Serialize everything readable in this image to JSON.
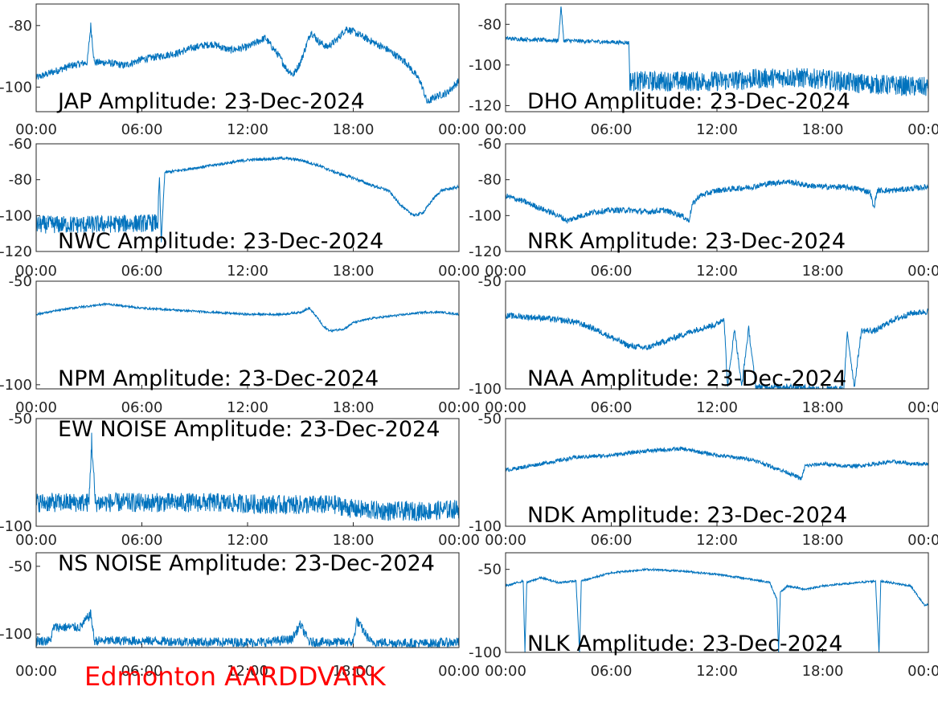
{
  "footer": {
    "text": "Edmonton AARDDVARK",
    "color": "#ff0000"
  },
  "series_color": "#0072bd",
  "x_tick_labels": [
    "00:00",
    "06:00",
    "12:00",
    "18:00",
    "00:00"
  ],
  "chart_data": [
    {
      "type": "line",
      "title": "JAP Amplitude: 23-Dec-2024",
      "x_range": [
        "00:00",
        "24:00"
      ],
      "ylim": [
        -108,
        -73
      ],
      "yticks": [
        -80,
        -100
      ],
      "ytick_labels": [
        "-80",
        "-100"
      ],
      "points": [
        [
          0,
          -97
        ],
        [
          1,
          -95
        ],
        [
          2,
          -93
        ],
        [
          2.9,
          -92
        ],
        [
          3.1,
          -80
        ],
        [
          3.3,
          -92
        ],
        [
          4,
          -92
        ],
        [
          5,
          -93
        ],
        [
          6,
          -91
        ],
        [
          7,
          -90
        ],
        [
          8,
          -89
        ],
        [
          9,
          -87
        ],
        [
          10,
          -86
        ],
        [
          11,
          -88
        ],
        [
          12,
          -87
        ],
        [
          13,
          -84
        ],
        [
          13.8,
          -90
        ],
        [
          14.2,
          -94
        ],
        [
          14.6,
          -96
        ],
        [
          15,
          -92
        ],
        [
          15.6,
          -82
        ],
        [
          16,
          -85
        ],
        [
          16.5,
          -87
        ],
        [
          17,
          -85
        ],
        [
          17.6,
          -81
        ],
        [
          18,
          -82
        ],
        [
          19,
          -85
        ],
        [
          20,
          -88
        ],
        [
          21,
          -92
        ],
        [
          21.8,
          -98
        ],
        [
          22.2,
          -105
        ],
        [
          22.7,
          -103
        ],
        [
          23.3,
          -102
        ],
        [
          24,
          -98
        ]
      ],
      "noise": 1.2
    },
    {
      "type": "line",
      "title": "DHO Amplitude: 23-Dec-2024",
      "x_range": [
        "00:00",
        "24:00"
      ],
      "ylim": [
        -123,
        -70
      ],
      "yticks": [
        -80,
        -100,
        -120
      ],
      "ytick_labels": [
        "-80",
        "-100",
        "-120"
      ],
      "points": [
        [
          0,
          -87
        ],
        [
          3,
          -88
        ],
        [
          3.15,
          -71
        ],
        [
          3.3,
          -88
        ],
        [
          7,
          -89
        ],
        [
          7.05,
          -108
        ],
        [
          12,
          -108
        ],
        [
          14,
          -107
        ],
        [
          16,
          -106
        ],
        [
          18,
          -107
        ],
        [
          20,
          -109
        ],
        [
          22,
          -110
        ],
        [
          24,
          -111
        ]
      ],
      "noise": 5,
      "noise_start": 7.05
    },
    {
      "type": "line",
      "title": "NWC Amplitude: 23-Dec-2024",
      "x_range": [
        "00:00",
        "24:00"
      ],
      "ylim": [
        -120,
        -60
      ],
      "yticks": [
        -60,
        -80,
        -100,
        -120
      ],
      "ytick_labels": [
        "-60",
        "-80",
        "-100",
        "-120"
      ],
      "points": [
        [
          0,
          -105
        ],
        [
          3,
          -105
        ],
        [
          6.9,
          -104
        ],
        [
          7,
          -80
        ],
        [
          7.1,
          -115
        ],
        [
          7.3,
          -76
        ],
        [
          8,
          -75
        ],
        [
          10,
          -72
        ],
        [
          12,
          -69
        ],
        [
          14,
          -68
        ],
        [
          15,
          -69
        ],
        [
          16,
          -72
        ],
        [
          17,
          -76
        ],
        [
          18,
          -79
        ],
        [
          19,
          -83
        ],
        [
          20,
          -86
        ],
        [
          20.5,
          -92
        ],
        [
          21,
          -97
        ],
        [
          21.5,
          -100
        ],
        [
          22,
          -98
        ],
        [
          22.5,
          -91
        ],
        [
          23,
          -86
        ],
        [
          24,
          -84
        ]
      ],
      "noise": 5,
      "noise_end": 7
    },
    {
      "type": "line",
      "title": "NRK Amplitude: 23-Dec-2024",
      "x_range": [
        "00:00",
        "24:00"
      ],
      "ylim": [
        -120,
        -60
      ],
      "yticks": [
        -60,
        -80,
        -100,
        -120
      ],
      "ytick_labels": [
        "-60",
        "-80",
        "-100",
        "-120"
      ],
      "points": [
        [
          0,
          -89
        ],
        [
          1,
          -92
        ],
        [
          2,
          -96
        ],
        [
          3,
          -100
        ],
        [
          3.5,
          -103
        ],
        [
          4,
          -101
        ],
        [
          5,
          -98
        ],
        [
          6,
          -97
        ],
        [
          7,
          -97
        ],
        [
          8,
          -98
        ],
        [
          9,
          -97
        ],
        [
          10,
          -100
        ],
        [
          10.4,
          -103
        ],
        [
          10.6,
          -94
        ],
        [
          11,
          -89
        ],
        [
          12,
          -86
        ],
        [
          13,
          -85
        ],
        [
          14,
          -84
        ],
        [
          15,
          -82
        ],
        [
          16,
          -81
        ],
        [
          17,
          -83
        ],
        [
          18,
          -84
        ],
        [
          19,
          -84
        ],
        [
          20,
          -85
        ],
        [
          20.7,
          -87
        ],
        [
          20.9,
          -96
        ],
        [
          21.1,
          -86
        ],
        [
          22,
          -86
        ],
        [
          23,
          -85
        ],
        [
          24,
          -84
        ]
      ],
      "noise": 1.6
    },
    {
      "type": "line",
      "title": "NPM Amplitude: 23-Dec-2024",
      "x_range": [
        "00:00",
        "24:00"
      ],
      "ylim": [
        -102,
        -50
      ],
      "yticks": [
        -50,
        -100
      ],
      "ytick_labels": [
        "-50",
        "-100"
      ],
      "points": [
        [
          0,
          -66
        ],
        [
          2,
          -63
        ],
        [
          4,
          -61
        ],
        [
          6,
          -63
        ],
        [
          8,
          -64
        ],
        [
          10,
          -65
        ],
        [
          12,
          -66
        ],
        [
          14,
          -66
        ],
        [
          15,
          -65
        ],
        [
          15.5,
          -63
        ],
        [
          16,
          -68
        ],
        [
          16.3,
          -72
        ],
        [
          16.7,
          -74
        ],
        [
          17.5,
          -73
        ],
        [
          18,
          -70
        ],
        [
          19,
          -68
        ],
        [
          20,
          -67
        ],
        [
          22,
          -65
        ],
        [
          23,
          -65
        ],
        [
          24,
          -66
        ]
      ],
      "noise": 0.5
    },
    {
      "type": "line",
      "title": "NAA Amplitude: 23-Dec-2024",
      "x_range": [
        "00:00",
        "24:00"
      ],
      "ylim": [
        -100,
        -50
      ],
      "yticks": [
        -50,
        -100
      ],
      "ytick_labels": [
        "-50",
        "-100"
      ],
      "points": [
        [
          0,
          -66
        ],
        [
          2,
          -67
        ],
        [
          4,
          -69
        ],
        [
          5,
          -72
        ],
        [
          6,
          -76
        ],
        [
          7,
          -80
        ],
        [
          8,
          -81
        ],
        [
          9,
          -78
        ],
        [
          10,
          -75
        ],
        [
          11,
          -72
        ],
        [
          12,
          -70
        ],
        [
          12.4,
          -67
        ],
        [
          12.6,
          -99
        ],
        [
          13,
          -72
        ],
        [
          13.4,
          -99
        ],
        [
          13.8,
          -72
        ],
        [
          14.2,
          -99
        ],
        [
          15,
          -99
        ],
        [
          16,
          -99
        ],
        [
          18,
          -100
        ],
        [
          19.2,
          -100
        ],
        [
          19.4,
          -74
        ],
        [
          19.8,
          -99
        ],
        [
          20.2,
          -73
        ],
        [
          21,
          -73
        ],
        [
          22,
          -68
        ],
        [
          23,
          -65
        ],
        [
          24,
          -64
        ]
      ],
      "noise": 1.4
    },
    {
      "type": "line",
      "title": "EW NOISE Amplitude: 23-Dec-2024",
      "x_range": [
        "00:00",
        "24:00"
      ],
      "ylim": [
        -100,
        -50
      ],
      "yticks": [
        -50,
        -100
      ],
      "ytick_labels": [
        "-50",
        "-100"
      ],
      "points": [
        [
          0,
          -89
        ],
        [
          2,
          -89
        ],
        [
          3,
          -89
        ],
        [
          3.15,
          -60
        ],
        [
          3.35,
          -89
        ],
        [
          6,
          -89
        ],
        [
          10,
          -89
        ],
        [
          14,
          -90
        ],
        [
          17,
          -90
        ],
        [
          18,
          -92
        ],
        [
          20,
          -93
        ],
        [
          22,
          -93
        ],
        [
          24,
          -92
        ]
      ],
      "noise": 4.5
    },
    {
      "type": "line",
      "title": "NDK Amplitude: 23-Dec-2024",
      "x_range": [
        "00:00",
        "24:00"
      ],
      "ylim": [
        -100,
        -50
      ],
      "yticks": [
        -50,
        -100
      ],
      "ytick_labels": [
        "-50",
        "-100"
      ],
      "points": [
        [
          0,
          -74
        ],
        [
          2,
          -71
        ],
        [
          4,
          -68
        ],
        [
          6,
          -67
        ],
        [
          8,
          -65
        ],
        [
          10,
          -64
        ],
        [
          12,
          -67
        ],
        [
          14,
          -69
        ],
        [
          15,
          -72
        ],
        [
          16,
          -75
        ],
        [
          16.8,
          -78
        ],
        [
          17,
          -72
        ],
        [
          18,
          -71
        ],
        [
          19,
          -72
        ],
        [
          20,
          -72
        ],
        [
          21,
          -71
        ],
        [
          22,
          -70
        ],
        [
          23,
          -71
        ],
        [
          24,
          -71
        ]
      ],
      "noise": 0.9
    },
    {
      "type": "line",
      "title": "NS NOISE Amplitude: 23-Dec-2024",
      "x_range": [
        "00:00",
        "24:00"
      ],
      "ylim": [
        -110,
        -40
      ],
      "yticks": [
        -50,
        -100
      ],
      "ytick_labels": [
        "-50",
        "-100"
      ],
      "points": [
        [
          0,
          -105
        ],
        [
          0.8,
          -105
        ],
        [
          1,
          -95
        ],
        [
          2.5,
          -95
        ],
        [
          3.1,
          -85
        ],
        [
          3.3,
          -105
        ],
        [
          6,
          -105
        ],
        [
          10,
          -106
        ],
        [
          13,
          -106
        ],
        [
          14.5,
          -104
        ],
        [
          15,
          -93
        ],
        [
          15.5,
          -106
        ],
        [
          18,
          -106
        ],
        [
          18.2,
          -90
        ],
        [
          19,
          -106
        ],
        [
          22,
          -107
        ],
        [
          24,
          -106
        ]
      ],
      "noise": 3.5
    },
    {
      "type": "line",
      "title": "NLK Amplitude: 23-Dec-2024",
      "x_range": [
        "00:00",
        "24:00"
      ],
      "ylim": [
        -100,
        -40
      ],
      "yticks": [
        -50,
        -100
      ],
      "ytick_labels": [
        "-50",
        "-100"
      ],
      "points": [
        [
          0,
          -60
        ],
        [
          1,
          -57
        ],
        [
          1.1,
          -100
        ],
        [
          1.2,
          -58
        ],
        [
          2,
          -55
        ],
        [
          3,
          -58
        ],
        [
          4,
          -57
        ],
        [
          4.2,
          -100
        ],
        [
          4.3,
          -57
        ],
        [
          6,
          -52
        ],
        [
          8,
          -50
        ],
        [
          10,
          -51
        ],
        [
          12,
          -53
        ],
        [
          14,
          -56
        ],
        [
          15,
          -58
        ],
        [
          15.4,
          -68
        ],
        [
          15.5,
          -100
        ],
        [
          15.6,
          -64
        ],
        [
          16,
          -60
        ],
        [
          17,
          -62
        ],
        [
          18,
          -60
        ],
        [
          20,
          -58
        ],
        [
          21,
          -57
        ],
        [
          21.2,
          -100
        ],
        [
          21.3,
          -57
        ],
        [
          23,
          -60
        ],
        [
          23.8,
          -72
        ],
        [
          24,
          -71
        ]
      ],
      "noise": 0.6
    }
  ]
}
